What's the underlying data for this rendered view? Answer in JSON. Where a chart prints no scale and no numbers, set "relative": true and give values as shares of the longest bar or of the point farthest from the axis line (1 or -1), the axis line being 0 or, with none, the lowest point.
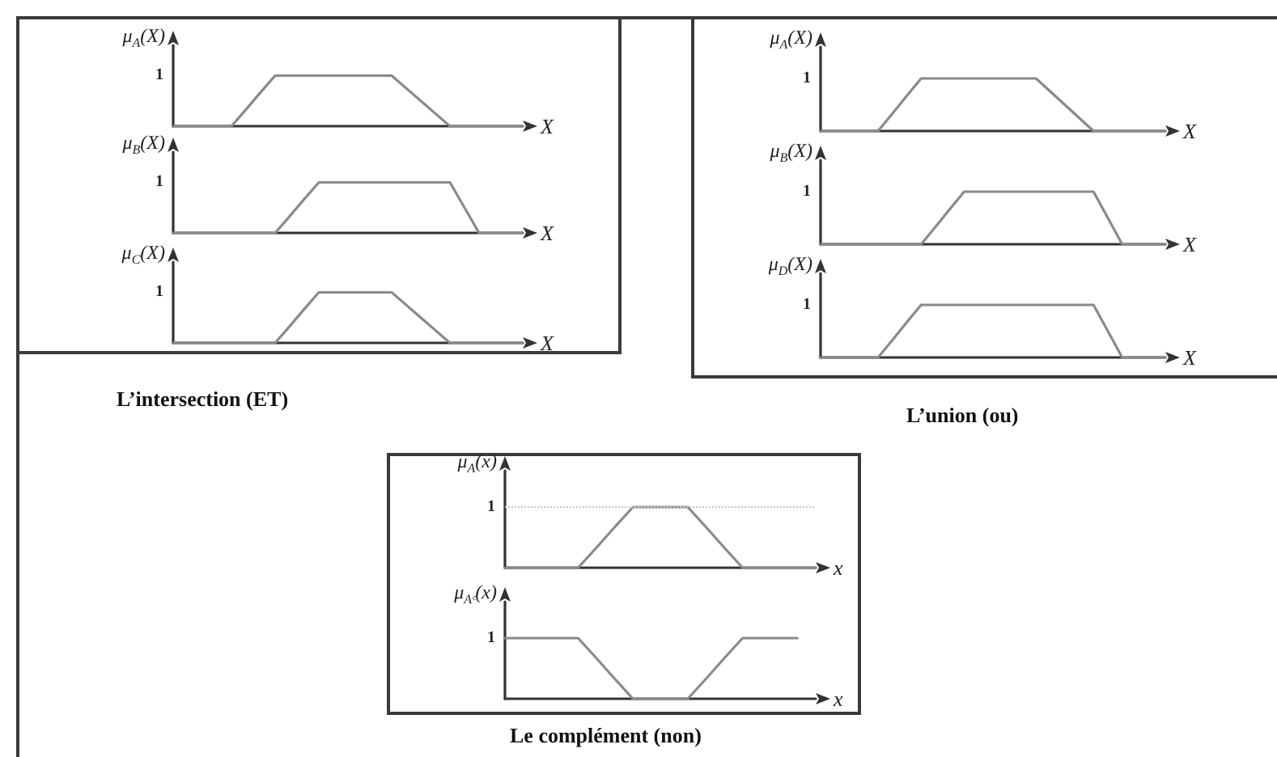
{
  "chart_data": [
    {
      "type": "line",
      "relative": true,
      "ylabel": "μ$_{A}$(X)",
      "xlabel": "X",
      "categories": [
        null,
        null,
        null,
        null,
        null,
        null,
        null,
        null,
        null,
        null,
        null,
        null,
        null,
        null,
        null,
        null,
        null,
        null,
        null,
        null,
        null,
        null,
        null,
        null,
        null
      ],
      "values": [
        0,
        0,
        0,
        0,
        0,
        0.33,
        0.67,
        1,
        1,
        1,
        1,
        1,
        1,
        1,
        1,
        1,
        0.75,
        0.5,
        0.25,
        0,
        0,
        0,
        0,
        0,
        0
      ],
      "color": "#8a8a8a",
      "marker": "none",
      "annotations": [
        "1"
      ]
    },
    {
      "type": "line",
      "relative": true,
      "ylabel": "μ$_{B}$(X)",
      "xlabel": "X",
      "categories": [
        null,
        null,
        null,
        null,
        null,
        null,
        null,
        null,
        null,
        null,
        null,
        null,
        null,
        null,
        null,
        null,
        null,
        null,
        null,
        null,
        null,
        null,
        null,
        null,
        null
      ],
      "values": [
        0,
        0,
        0,
        0,
        0,
        0,
        0,
        0,
        0.33,
        0.67,
        1,
        1,
        1,
        1,
        1,
        1,
        1,
        1,
        1,
        1,
        0.5,
        0,
        0,
        0,
        0
      ],
      "color": "#8a8a8a",
      "marker": "none",
      "annotations": [
        "1"
      ]
    },
    {
      "type": "line",
      "relative": true,
      "ylabel": "μ$_{C}$(X)",
      "xlabel": "X",
      "categories": [
        null,
        null,
        null,
        null,
        null,
        null,
        null,
        null,
        null,
        null,
        null,
        null,
        null,
        null,
        null,
        null,
        null,
        null,
        null,
        null,
        null,
        null,
        null,
        null,
        null
      ],
      "values": [
        0,
        0,
        0,
        0,
        0,
        0,
        0,
        0,
        0.33,
        0.67,
        1,
        1,
        1,
        1,
        1,
        1,
        0.75,
        0.5,
        0.25,
        0,
        0,
        0,
        0,
        0,
        0
      ],
      "color": "#8a8a8a",
      "marker": "none",
      "annotations": [
        "1",
        "L’intersection (ET)"
      ]
    },
    {
      "type": "line",
      "relative": true,
      "ylabel": "μ$_{A}$(X)",
      "xlabel": "X",
      "categories": [
        null,
        null,
        null,
        null,
        null,
        null,
        null,
        null,
        null,
        null,
        null,
        null,
        null,
        null,
        null,
        null,
        null,
        null,
        null,
        null,
        null,
        null,
        null,
        null,
        null
      ],
      "values": [
        0,
        0,
        0,
        0,
        0,
        0.33,
        0.67,
        1,
        1,
        1,
        1,
        1,
        1,
        1,
        1,
        1,
        0.75,
        0.5,
        0.25,
        0,
        0,
        0,
        0,
        0,
        0
      ],
      "color": "#8a8a8a",
      "marker": "none",
      "annotations": [
        "1"
      ]
    },
    {
      "type": "line",
      "relative": true,
      "ylabel": "μ$_{B}$(X)",
      "xlabel": "X",
      "categories": [
        null,
        null,
        null,
        null,
        null,
        null,
        null,
        null,
        null,
        null,
        null,
        null,
        null,
        null,
        null,
        null,
        null,
        null,
        null,
        null,
        null,
        null,
        null,
        null,
        null
      ],
      "values": [
        0,
        0,
        0,
        0,
        0,
        0,
        0,
        0,
        0.33,
        0.67,
        1,
        1,
        1,
        1,
        1,
        1,
        1,
        1,
        1,
        1,
        0.5,
        0,
        0,
        0,
        0
      ],
      "color": "#8a8a8a",
      "marker": "none",
      "annotations": [
        "1"
      ]
    },
    {
      "type": "line",
      "relative": true,
      "ylabel": "μ$_{D}$(X)",
      "xlabel": "X",
      "categories": [
        null,
        null,
        null,
        null,
        null,
        null,
        null,
        null,
        null,
        null,
        null,
        null,
        null,
        null,
        null,
        null,
        null,
        null,
        null,
        null,
        null,
        null,
        null,
        null,
        null
      ],
      "values": [
        0,
        0,
        0,
        0,
        0,
        0.33,
        0.67,
        1,
        1,
        1,
        1,
        1,
        1,
        1,
        1,
        1,
        1,
        1,
        1,
        1,
        0.5,
        0,
        0,
        0,
        0
      ],
      "color": "#8a8a8a",
      "marker": "none",
      "annotations": [
        "1",
        "L’union (ou)"
      ]
    },
    {
      "type": "line",
      "relative": true,
      "ylabel": "μ$_{A}$(x)",
      "xlabel": "x",
      "categories": [
        null,
        null,
        null,
        null,
        null,
        null,
        null,
        null,
        null,
        null,
        null,
        null,
        null,
        null,
        null,
        null,
        null,
        null
      ],
      "values": [
        0,
        0,
        0,
        0,
        0,
        0.33,
        0.67,
        1,
        1,
        1,
        1,
        0.67,
        0.33,
        0,
        0,
        0,
        0,
        0
      ],
      "color": "#8a8a8a",
      "marker": "none",
      "annotations": [
        "1"
      ],
      "ref_lines": [
        {
          "axis": "y",
          "value": 1,
          "line_style": "dotted",
          "color": "#c4c4c4"
        }
      ]
    },
    {
      "type": "line",
      "relative": true,
      "ylabel": "μ$_{Aᶜ}$(x)",
      "xlabel": "x",
      "categories": [
        null,
        null,
        null,
        null,
        null,
        null,
        null,
        null,
        null,
        null,
        null,
        null,
        null,
        null,
        null,
        null,
        null,
        null
      ],
      "values": [
        1,
        1,
        1,
        1,
        1,
        0.67,
        0.33,
        0,
        0,
        0,
        0,
        0.33,
        0.67,
        1,
        1,
        1,
        1,
        null
      ],
      "color": "#8a8a8a",
      "marker": "none",
      "annotations": [
        "1",
        "Le complément (non)"
      ]
    }
  ]
}
